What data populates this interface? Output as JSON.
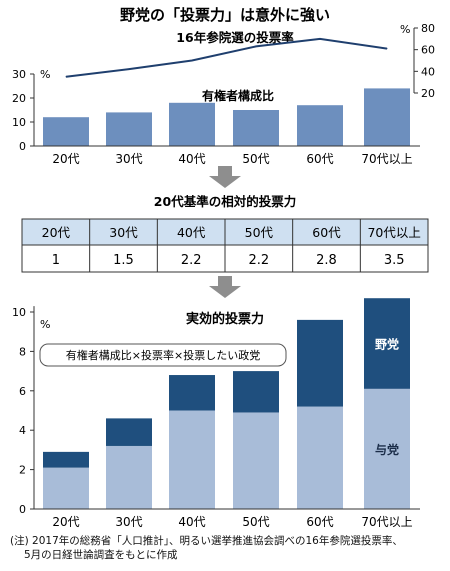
{
  "title": "野党の「投票力」は意外に強い",
  "colors": {
    "bar": "#6d8fbe",
    "line": "#1f3f6e",
    "table_header": "#cfe0f1",
    "arrow": "#8e8e8e",
    "dark": "#1f4f7e",
    "light": "#a8bcd8"
  },
  "chart_data": [
    {
      "type": "line",
      "title": "16年参院選の投票率",
      "categories": [
        "20代",
        "30代",
        "40代",
        "50代",
        "60代",
        "70代以上"
      ],
      "values": [
        35,
        42,
        50,
        63,
        70,
        61
      ],
      "yunit": "%",
      "yticks": [
        "20",
        "40",
        "60",
        "80"
      ],
      "ylim": [
        20,
        80
      ]
    },
    {
      "type": "bar",
      "title": "有権者構成比",
      "categories": [
        "20代",
        "30代",
        "40代",
        "50代",
        "60代",
        "70代以上"
      ],
      "values": [
        12,
        14,
        18,
        15,
        17,
        24
      ],
      "yunit": "%",
      "yticks": [
        "0",
        "10",
        "20",
        "30"
      ],
      "ylim": [
        0,
        30
      ]
    },
    {
      "type": "table",
      "title": "20代基準の相対的投票力",
      "header": [
        "20代",
        "30代",
        "40代",
        "50代",
        "60代",
        "70代以上"
      ],
      "row": [
        "1",
        "1.5",
        "2.2",
        "2.2",
        "2.8",
        "3.5"
      ]
    },
    {
      "type": "bar",
      "stacked": true,
      "title": "実効的投票力",
      "formula": "有権者構成比×投票率×投票したい政党",
      "categories": [
        "20代",
        "30代",
        "40代",
        "50代",
        "60代",
        "70代以上"
      ],
      "yunit": "%",
      "yticks": [
        "0",
        "2",
        "4",
        "6",
        "8",
        "10"
      ],
      "ylim": [
        0,
        10.5
      ],
      "series": [
        {
          "name": "与党",
          "values": [
            2.1,
            3.2,
            5.0,
            4.9,
            5.2,
            6.1
          ]
        },
        {
          "name": "野党",
          "values": [
            0.8,
            1.4,
            1.8,
            2.1,
            4.4,
            4.6
          ]
        }
      ]
    }
  ],
  "footnote": [
    "(注) 2017年の総務省「人口推計」、明るい選挙推進協会調べの16年参院選投票率、",
    "5月の日経世論調査をもとに作成"
  ]
}
